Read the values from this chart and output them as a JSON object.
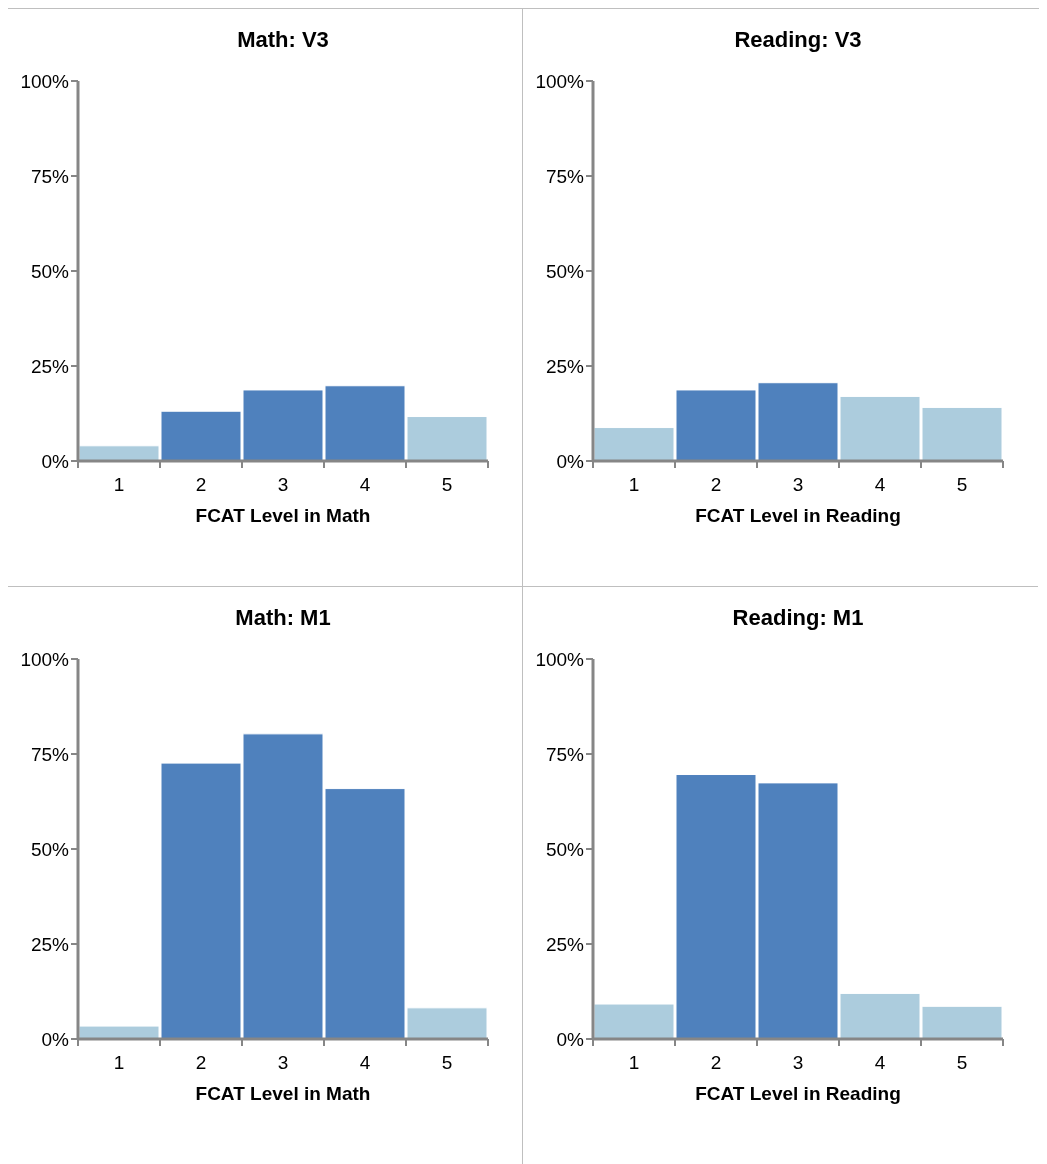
{
  "chart_data": [
    {
      "type": "bar",
      "title": "Math: V3",
      "xlabel": "FCAT Level in Math",
      "categories": [
        "1",
        "2",
        "3",
        "4",
        "5"
      ],
      "values": [
        4.0,
        13.1,
        18.7,
        19.8,
        11.7
      ],
      "colors": [
        "#acccdd",
        "#4f81bd",
        "#4f81bd",
        "#4f81bd",
        "#acccdd"
      ],
      "ylim": [
        0,
        100
      ],
      "yticks": [
        {
          "value": 0,
          "label": "0%"
        },
        {
          "value": 25,
          "label": "25%"
        },
        {
          "value": 50,
          "label": "50%"
        },
        {
          "value": 75,
          "label": "75%"
        },
        {
          "value": 100,
          "label": "100%"
        }
      ]
    },
    {
      "type": "bar",
      "title": "Reading: V3",
      "xlabel": "FCAT Level in Reading",
      "categories": [
        "1",
        "2",
        "3",
        "4",
        "5"
      ],
      "values": [
        8.8,
        18.7,
        20.6,
        17.0,
        14.1
      ],
      "colors": [
        "#acccdd",
        "#4f81bd",
        "#4f81bd",
        "#acccdd",
        "#acccdd"
      ],
      "ylim": [
        0,
        100
      ],
      "yticks": [
        {
          "value": 0,
          "label": "0%"
        },
        {
          "value": 25,
          "label": "25%"
        },
        {
          "value": 50,
          "label": "50%"
        },
        {
          "value": 75,
          "label": "75%"
        },
        {
          "value": 100,
          "label": "100%"
        }
      ]
    },
    {
      "type": "bar",
      "title": "Math: M1",
      "xlabel": "FCAT Level in Math",
      "categories": [
        "1",
        "2",
        "3",
        "4",
        "5"
      ],
      "values": [
        3.4,
        72.6,
        80.3,
        65.9,
        8.2
      ],
      "colors": [
        "#acccdd",
        "#4f81bd",
        "#4f81bd",
        "#4f81bd",
        "#acccdd"
      ],
      "ylim": [
        0,
        100
      ],
      "yticks": [
        {
          "value": 0,
          "label": "0%"
        },
        {
          "value": 25,
          "label": "25%"
        },
        {
          "value": 50,
          "label": "50%"
        },
        {
          "value": 75,
          "label": "75%"
        },
        {
          "value": 100,
          "label": "100%"
        }
      ]
    },
    {
      "type": "bar",
      "title": "Reading: M1",
      "xlabel": "FCAT Level in Reading",
      "categories": [
        "1",
        "2",
        "3",
        "4",
        "5"
      ],
      "values": [
        9.2,
        69.6,
        67.4,
        12.0,
        8.6
      ],
      "colors": [
        "#acccdd",
        "#4f81bd",
        "#4f81bd",
        "#acccdd",
        "#acccdd"
      ],
      "ylim": [
        0,
        100
      ],
      "yticks": [
        {
          "value": 0,
          "label": "0%"
        },
        {
          "value": 25,
          "label": "25%"
        },
        {
          "value": 50,
          "label": "50%"
        },
        {
          "value": 75,
          "label": "75%"
        },
        {
          "value": 100,
          "label": "100%"
        }
      ]
    }
  ]
}
